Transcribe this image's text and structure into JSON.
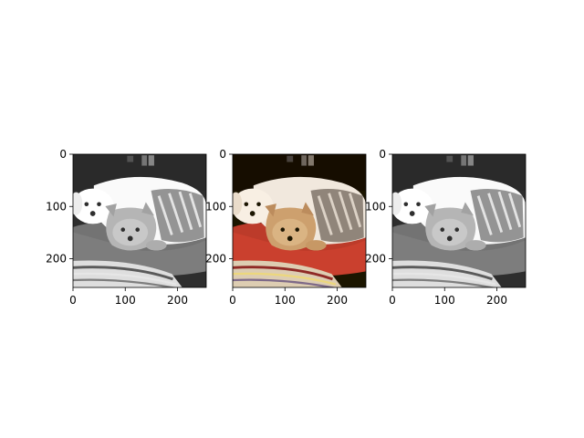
{
  "chart_data": [
    {
      "type": "image",
      "variant": "grayscale",
      "content": "two small dogs lying on a dog bed",
      "x_extent": [
        0,
        255
      ],
      "y_extent": [
        255,
        0
      ],
      "xticks": [
        0,
        100,
        200
      ],
      "yticks": [
        0,
        100,
        200
      ],
      "xtick_labels": [
        "0",
        "100",
        "200"
      ],
      "ytick_labels": [
        "0",
        "100",
        "200"
      ]
    },
    {
      "type": "image",
      "variant": "color",
      "content": "two small dogs lying on a red dog bed",
      "x_extent": [
        0,
        255
      ],
      "y_extent": [
        255,
        0
      ],
      "xticks": [
        0,
        100,
        200
      ],
      "yticks": [
        0,
        100,
        200
      ],
      "xtick_labels": [
        "0",
        "100",
        "200"
      ],
      "ytick_labels": [
        "0",
        "100",
        "200"
      ]
    },
    {
      "type": "image",
      "variant": "grayscale",
      "content": "two small dogs lying on a dog bed",
      "x_extent": [
        0,
        255
      ],
      "y_extent": [
        255,
        0
      ],
      "xticks": [
        0,
        100,
        200
      ],
      "yticks": [
        0,
        100,
        200
      ],
      "xtick_labels": [
        "0",
        "100",
        "200"
      ],
      "ytick_labels": [
        "0",
        "100",
        "200"
      ]
    }
  ]
}
